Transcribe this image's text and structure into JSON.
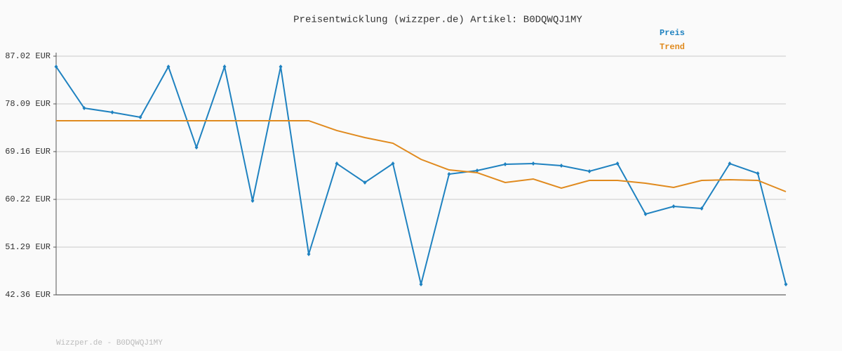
{
  "chart_data": {
    "type": "line",
    "title": "Preisentwicklung (wizzper.de) Artikel: B0DQWQJ1MY",
    "footer": "Wizzper.de - B0DQWQJ1MY",
    "series": [
      {
        "name": "Preis",
        "color": "#1f82c0",
        "markers": true,
        "values": [
          85.05,
          77.3,
          76.51,
          75.59,
          85.05,
          69.94,
          85.05,
          59.96,
          85.05,
          49.98,
          66.92,
          63.38,
          66.92,
          44.33,
          64.95,
          65.61,
          66.79,
          66.92,
          66.53,
          65.48,
          66.92,
          57.47,
          58.91,
          58.52,
          66.92,
          65.08,
          44.33
        ]
      },
      {
        "name": "Trend",
        "color": "#e08a1e",
        "markers": false,
        "values": [
          74.94,
          74.94,
          74.94,
          74.94,
          74.94,
          74.94,
          74.94,
          74.94,
          74.94,
          74.94,
          73.1,
          71.78,
          70.73,
          67.71,
          65.74,
          65.22,
          63.38,
          64.03,
          62.33,
          63.77,
          63.77,
          63.25,
          62.46,
          63.77,
          63.9,
          63.77,
          61.67
        ]
      }
    ],
    "ylim": [
      42.36,
      87.02
    ],
    "yticks": [
      {
        "value": 42.36,
        "label": "42.36 EUR"
      },
      {
        "value": 51.29,
        "label": "51.29 EUR"
      },
      {
        "value": 60.22,
        "label": "60.22 EUR"
      },
      {
        "value": 69.16,
        "label": "69.16 EUR"
      },
      {
        "value": 78.09,
        "label": "78.09 EUR"
      },
      {
        "value": 87.02,
        "label": "87.02 EUR"
      }
    ],
    "grid": true
  }
}
